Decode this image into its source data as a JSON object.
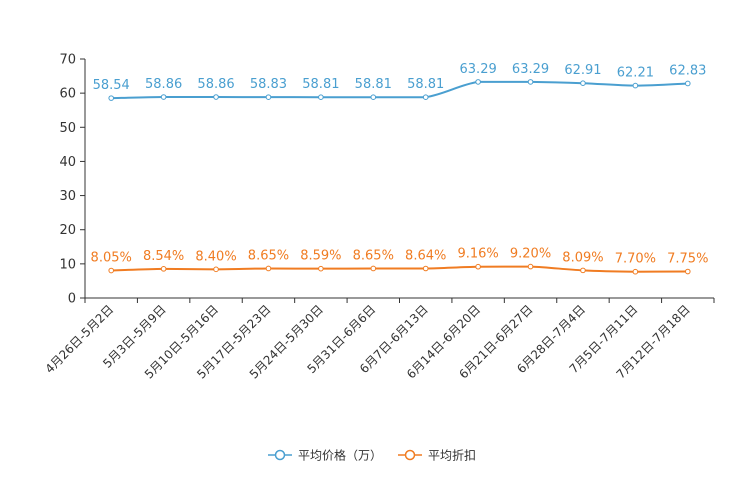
{
  "chart_data": {
    "type": "line",
    "title": "",
    "xlabel": "",
    "ylabel": "",
    "ylim": [
      0,
      70
    ],
    "yticks": [
      0,
      10,
      20,
      30,
      40,
      50,
      60,
      70
    ],
    "categories": [
      "4月26日-5月2日",
      "5月3日-5月9日",
      "5月10日-5月16日",
      "5月17日-5月23日",
      "5月24日-5月30日",
      "5月31日-6月6日",
      "6月7日-6月13日",
      "6月14日-6月20日",
      "6月21日-6月27日",
      "6月28日-7月4日",
      "7月5日-7月11日",
      "7月12日-7月18日"
    ],
    "series": [
      {
        "name": "平均价格（万）",
        "color": "#4a9fd0",
        "values": [
          58.54,
          58.86,
          58.86,
          58.83,
          58.81,
          58.81,
          58.81,
          63.29,
          63.29,
          62.91,
          62.21,
          62.83
        ],
        "labels": [
          "58.54",
          "58.86",
          "58.86",
          "58.83",
          "58.81",
          "58.81",
          "58.81",
          "63.29",
          "63.29",
          "62.91",
          "62.21",
          "62.83"
        ]
      },
      {
        "name": "平均折扣",
        "color": "#f07c22",
        "values": [
          8.05,
          8.54,
          8.4,
          8.65,
          8.59,
          8.65,
          8.64,
          9.16,
          9.2,
          8.09,
          7.7,
          7.75
        ],
        "labels": [
          "8.05%",
          "8.54%",
          "8.40%",
          "8.65%",
          "8.59%",
          "8.65%",
          "8.64%",
          "9.16%",
          "9.20%",
          "8.09%",
          "7.70%",
          "7.75%"
        ]
      }
    ],
    "legend_position": "bottom-center",
    "grid": false
  }
}
